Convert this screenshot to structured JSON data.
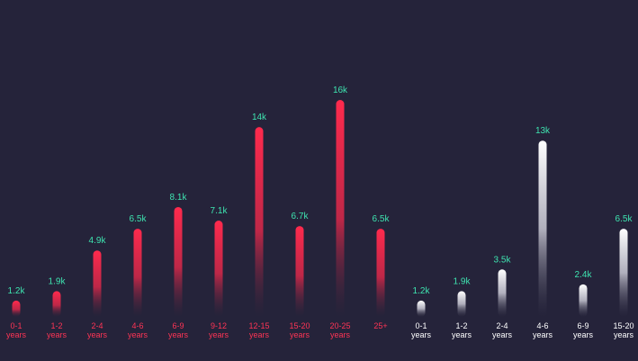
{
  "colors": {
    "background": "#25233a",
    "value_label": "#3ee4b0",
    "group1_bar": "#ff2a4d",
    "group1_label": "#ff3455",
    "group2_bar": "#e9e8f0",
    "group2_label": "#ffffff"
  },
  "chart_data": [
    {
      "type": "bar",
      "title": "",
      "xlabel": "",
      "ylabel": "",
      "ylim": [
        0,
        16000
      ],
      "grid": false,
      "legend": "none",
      "color": "#ff2a4d",
      "categories": [
        [
          "0-1",
          "years"
        ],
        [
          "1-2",
          "years"
        ],
        [
          "2-4",
          "years"
        ],
        [
          "4-6",
          "years"
        ],
        [
          "6-9",
          "years"
        ],
        [
          "9-12",
          "years"
        ],
        [
          "12-15",
          "years"
        ],
        [
          "15-20",
          "years"
        ],
        [
          "20-25",
          "years"
        ],
        [
          "25+",
          ""
        ]
      ],
      "values": [
        1200,
        1900,
        4900,
        6500,
        8100,
        7100,
        14000,
        6700,
        16000,
        6500
      ],
      "value_labels": [
        "1.2k",
        "1.9k",
        "4.9k",
        "6.5k",
        "8.1k",
        "7.1k",
        "14k",
        "6.7k",
        "16k",
        "6.5k"
      ]
    },
    {
      "type": "bar",
      "title": "",
      "xlabel": "",
      "ylabel": "",
      "ylim": [
        0,
        16000
      ],
      "grid": false,
      "legend": "none",
      "color": "#e9e8f0",
      "categories": [
        [
          "0-1",
          "years"
        ],
        [
          "1-2",
          "years"
        ],
        [
          "2-4",
          "years"
        ],
        [
          "4-6",
          "years"
        ],
        [
          "6-9",
          "years"
        ],
        [
          "15-20",
          "years"
        ]
      ],
      "values": [
        1200,
        1900,
        3500,
        13000,
        2400,
        6500
      ],
      "value_labels": [
        "1.2k",
        "1.9k",
        "3.5k",
        "13k",
        "2.4k",
        "6.5k"
      ]
    }
  ]
}
